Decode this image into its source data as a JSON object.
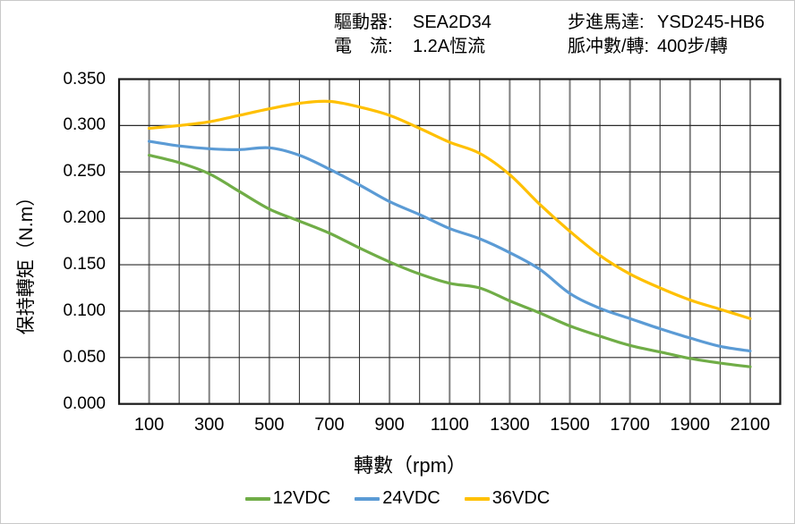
{
  "header": {
    "col1": [
      {
        "label": "驅動器:",
        "value": "SEA2D34"
      },
      {
        "label": "電　流:",
        "value": "1.2A恆流"
      }
    ],
    "col2": [
      {
        "label": "步進馬達:",
        "value": "YSD245-HB6"
      },
      {
        "label": "脈冲數/轉:",
        "value": "400步/轉"
      }
    ]
  },
  "chart_data": {
    "type": "line",
    "title": "",
    "xlabel": "轉數（rpm）",
    "ylabel": "保持轉矩（N.m）",
    "xlim": [
      0,
      2200
    ],
    "ylim": [
      0,
      0.35
    ],
    "grid": "both",
    "legend_position": "bottom",
    "x_ticks": [
      100,
      300,
      500,
      700,
      900,
      1100,
      1300,
      1500,
      1700,
      1900,
      2100
    ],
    "y_ticks": [
      0.0,
      0.05,
      0.1,
      0.15,
      0.2,
      0.25,
      0.3,
      0.35
    ],
    "x": [
      100,
      200,
      300,
      400,
      500,
      600,
      700,
      800,
      900,
      1000,
      1100,
      1200,
      1300,
      1400,
      1500,
      1600,
      1700,
      1800,
      1900,
      2000,
      2100
    ],
    "series": [
      {
        "name": "12VDC",
        "color": "#70AD47",
        "values": [
          0.268,
          0.26,
          0.248,
          0.229,
          0.21,
          0.197,
          0.184,
          0.168,
          0.153,
          0.14,
          0.13,
          0.125,
          0.111,
          0.098,
          0.084,
          0.073,
          0.063,
          0.056,
          0.049,
          0.044,
          0.04
        ]
      },
      {
        "name": "24VDC",
        "color": "#5B9BD5",
        "values": [
          0.283,
          0.278,
          0.275,
          0.274,
          0.276,
          0.268,
          0.253,
          0.236,
          0.218,
          0.204,
          0.189,
          0.178,
          0.163,
          0.145,
          0.119,
          0.103,
          0.092,
          0.081,
          0.071,
          0.062,
          0.057
        ]
      },
      {
        "name": "36VDC",
        "color": "#FFC000",
        "values": [
          0.297,
          0.3,
          0.304,
          0.311,
          0.318,
          0.324,
          0.326,
          0.32,
          0.311,
          0.297,
          0.282,
          0.27,
          0.247,
          0.215,
          0.186,
          0.16,
          0.14,
          0.125,
          0.112,
          0.102,
          0.092
        ]
      }
    ],
    "style": {
      "border_color": "#1a1a1a",
      "grid_major_color": "#808080",
      "grid_minor_color": "#2b2b2b"
    }
  }
}
